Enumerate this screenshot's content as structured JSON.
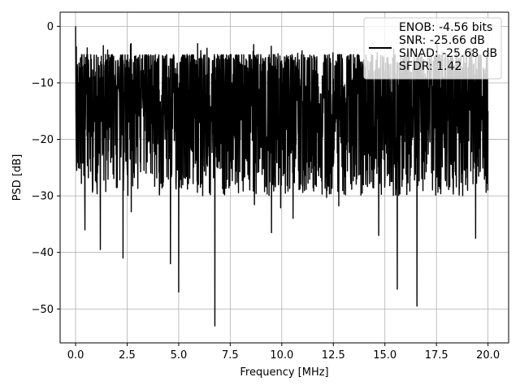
{
  "chart_data": {
    "type": "line",
    "xlabel": "Frequency [MHz]",
    "ylabel": "PSD [dB]",
    "xlim": [
      -0.75,
      21.0
    ],
    "ylim": [
      -56.0,
      2.5
    ],
    "x_ticks": [
      0.0,
      2.5,
      5.0,
      7.5,
      10.0,
      12.5,
      15.0,
      17.5,
      20.0
    ],
    "x_tick_labels": [
      "0.0",
      "2.5",
      "5.0",
      "7.5",
      "10.0",
      "12.5",
      "15.0",
      "17.5",
      "20.0"
    ],
    "y_ticks": [
      0,
      -10,
      -20,
      -30,
      -40,
      -50
    ],
    "y_tick_labels": [
      "0",
      "−10",
      "−20",
      "−30",
      "−40",
      "−50"
    ],
    "grid": true,
    "legend_position": "top-right",
    "line_color": "#000000",
    "series": [
      {
        "name": "ENOB: -4.56 bits\nSNR: -25.66 dB\nSINAD: -25.68 dB\nSFDR: 1.42",
        "x_range": [
          0.0,
          20.0
        ],
        "noise_floor_typical": [
          -30,
          -5
        ],
        "start_values": [
          {
            "x": 0.0,
            "y": 0.0
          },
          {
            "x": 0.02,
            "y": -15.0
          },
          {
            "x": 0.05,
            "y": -25.0
          }
        ],
        "end_value": {
          "x": 20.0,
          "y": -15.0
        },
        "notable_dips": [
          {
            "x": 0.45,
            "y": -36.0
          },
          {
            "x": 1.2,
            "y": -39.5
          },
          {
            "x": 2.3,
            "y": -41.0
          },
          {
            "x": 4.6,
            "y": -42.0
          },
          {
            "x": 5.0,
            "y": -47.0
          },
          {
            "x": 6.75,
            "y": -53.0
          },
          {
            "x": 9.5,
            "y": -36.5
          },
          {
            "x": 14.7,
            "y": -37.0
          },
          {
            "x": 15.6,
            "y": -46.5
          },
          {
            "x": 16.55,
            "y": -49.5
          },
          {
            "x": 19.4,
            "y": -37.5
          }
        ]
      }
    ]
  }
}
